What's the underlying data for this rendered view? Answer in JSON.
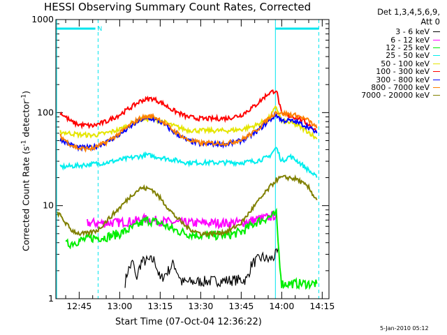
{
  "title": "HESSI Observing Summary Count Rates, Corrected",
  "legend_header": [
    "Det 1,3,4,5,6,9,",
    "Att 0"
  ],
  "x_axis_title": "Start Time (07-Oct-04 12:36:22)",
  "y_axis_title": {
    "prefix": "Corrected Count Rate (s",
    "sup": "-1",
    "suffix": " detector",
    "sup2": "-1",
    "end": ")"
  },
  "footer": "5-Jan-2010 05:12",
  "flag_label": "N",
  "colors": {
    "axes": "#000000",
    "flag": "#00e5ee"
  },
  "chart_data": {
    "type": "line",
    "y_scale": "log",
    "ylim": [
      1,
      1000
    ],
    "y_ticks": [
      1,
      10,
      100,
      1000
    ],
    "y_tick_labels": [
      "1",
      "10",
      "100",
      "1000"
    ],
    "x_units": "minutes",
    "xlim": [
      "12:36:22",
      "14:17:30"
    ],
    "x_ticks": [
      "12:45",
      "13:00",
      "13:15",
      "13:30",
      "13:45",
      "14:00",
      "14:15"
    ],
    "flag_lines": [
      "12:36:40",
      "12:52:00",
      "13:57:40",
      "14:13:45"
    ],
    "flag_bars": [
      [
        "12:36:40",
        "12:51:00"
      ],
      [
        "13:57:40",
        "14:13:45"
      ]
    ],
    "series": [
      {
        "name": "3 - 6 keV",
        "color": "#000000",
        "x": [
          "13:02",
          "13:03",
          "13:05",
          "13:06",
          "13:08",
          "13:13",
          "13:15",
          "13:18",
          "13:20",
          "13:23",
          "13:47",
          "13:49",
          "13:51",
          "13:53",
          "13:55",
          "13:57",
          "13:59"
        ],
        "y": [
          1.5,
          2.0,
          2.5,
          1.6,
          2.5,
          2.6,
          1.6,
          2.0,
          2.4,
          1.5,
          1.6,
          2.4,
          2.6,
          2.8,
          2.6,
          2.8,
          3.2
        ]
      },
      {
        "name": "6 - 12 keV",
        "color": "#ff00ff",
        "x": [
          "12:48",
          "12:55",
          "13:00",
          "13:05",
          "13:10",
          "13:15",
          "13:20",
          "13:25",
          "13:30",
          "13:35",
          "13:40",
          "13:45",
          "13:50",
          "13:55",
          "13:58"
        ],
        "y": [
          6.5,
          6.5,
          6.6,
          6.8,
          7.2,
          6.8,
          6.6,
          6.5,
          6.5,
          6.5,
          6.5,
          6.6,
          7.0,
          7.5,
          8.0
        ]
      },
      {
        "name": "12 - 25 keV",
        "color": "#00ee00",
        "x": [
          "12:40",
          "12:45",
          "12:50",
          "12:55",
          "13:00",
          "13:05",
          "13:10",
          "13:15",
          "13:20",
          "13:25",
          "13:30",
          "13:35",
          "13:40",
          "13:45",
          "13:50",
          "13:55",
          "13:58",
          "13:59",
          "14:00",
          "14:05",
          "14:10",
          "14:13"
        ],
        "y": [
          3.8,
          4.2,
          4.5,
          4.6,
          5.0,
          5.8,
          7.0,
          6.5,
          5.5,
          5.0,
          4.8,
          4.8,
          4.8,
          5.2,
          6.5,
          7.5,
          8.0,
          3.0,
          1.45,
          1.45,
          1.45,
          1.45
        ]
      },
      {
        "name": "25 - 50 keV",
        "color": "#00eeee",
        "x": [
          "12:38",
          "12:45",
          "12:50",
          "12:55",
          "13:00",
          "13:05",
          "13:10",
          "13:15",
          "13:20",
          "13:25",
          "13:30",
          "13:35",
          "13:40",
          "13:45",
          "13:50",
          "13:55",
          "13:58",
          "14:00",
          "14:03",
          "14:06",
          "14:10",
          "14:13"
        ],
        "y": [
          26,
          27,
          28,
          29,
          31,
          33,
          35,
          33,
          31,
          29,
          29,
          29,
          29,
          29,
          30,
          33,
          42,
          30,
          34,
          30,
          24,
          20
        ]
      },
      {
        "name": "50 - 100 keV",
        "color": "#e5e500",
        "x": [
          "12:38",
          "12:45",
          "12:50",
          "12:55",
          "13:00",
          "13:05",
          "13:08",
          "13:12",
          "13:15",
          "13:20",
          "13:25",
          "13:30",
          "13:35",
          "13:40",
          "13:45",
          "13:50",
          "13:55",
          "13:58",
          "14:00",
          "14:03",
          "14:06",
          "14:10",
          "14:13"
        ],
        "y": [
          62,
          58,
          57,
          60,
          66,
          78,
          85,
          86,
          82,
          72,
          65,
          64,
          64,
          64,
          66,
          72,
          85,
          115,
          80,
          78,
          72,
          62,
          52
        ]
      },
      {
        "name": "100 - 300 keV",
        "color": "#ff0000",
        "x": [
          "12:38",
          "12:42",
          "12:45",
          "12:50",
          "12:55",
          "13:00",
          "13:05",
          "13:08",
          "13:12",
          "13:15",
          "13:20",
          "13:25",
          "13:30",
          "13:35",
          "13:40",
          "13:45",
          "13:50",
          "13:55",
          "13:58",
          "14:00",
          "14:03",
          "14:06",
          "14:10",
          "14:13"
        ],
        "y": [
          100,
          80,
          74,
          72,
          80,
          95,
          118,
          135,
          142,
          130,
          105,
          90,
          86,
          86,
          87,
          94,
          118,
          160,
          175,
          95,
          92,
          88,
          75,
          62
        ]
      },
      {
        "name": "300 - 800 keV",
        "color": "#0000ff",
        "x": [
          "12:38",
          "12:42",
          "12:45",
          "12:50",
          "12:55",
          "13:00",
          "13:05",
          "13:08",
          "13:12",
          "13:15",
          "13:20",
          "13:25",
          "13:30",
          "13:35",
          "13:40",
          "13:45",
          "13:50",
          "13:55",
          "13:58",
          "14:00",
          "14:03",
          "14:06",
          "14:10",
          "14:13"
        ],
        "y": [
          52,
          45,
          42,
          42,
          48,
          58,
          74,
          84,
          86,
          80,
          62,
          50,
          46,
          46,
          46,
          50,
          60,
          80,
          95,
          82,
          82,
          78,
          70,
          60
        ]
      },
      {
        "name": "800 - 7000 keV",
        "color": "#ff8000",
        "x": [
          "12:38",
          "12:42",
          "12:45",
          "12:50",
          "12:55",
          "13:00",
          "13:05",
          "13:08",
          "13:12",
          "13:15",
          "13:20",
          "13:25",
          "13:30",
          "13:35",
          "13:40",
          "13:45",
          "13:50",
          "13:55",
          "13:58",
          "14:00",
          "14:03",
          "14:06",
          "14:10",
          "14:13"
        ],
        "y": [
          56,
          45,
          41,
          41,
          48,
          60,
          78,
          88,
          92,
          84,
          64,
          51,
          47,
          47,
          47,
          51,
          62,
          86,
          102,
          98,
          96,
          92,
          82,
          68
        ]
      },
      {
        "name": "7000 - 20000 keV",
        "color": "#808000",
        "x": [
          "12:37",
          "12:40",
          "12:42",
          "12:45",
          "12:48",
          "12:52",
          "12:55",
          "13:00",
          "13:05",
          "13:08",
          "13:12",
          "13:15",
          "13:20",
          "13:25",
          "13:30",
          "13:35",
          "13:40",
          "13:45",
          "13:50",
          "13:55",
          "13:58",
          "14:00",
          "14:03",
          "14:06",
          "14:10",
          "14:13"
        ],
        "y": [
          8.5,
          6.5,
          5.5,
          5.0,
          5.0,
          5.5,
          6.8,
          9.5,
          13.5,
          15.5,
          15.0,
          12.0,
          8.0,
          5.8,
          5.0,
          5.0,
          5.3,
          6.5,
          10.0,
          15.0,
          19.0,
          20.0,
          20.0,
          19.0,
          15.5,
          11.5
        ]
      }
    ]
  }
}
